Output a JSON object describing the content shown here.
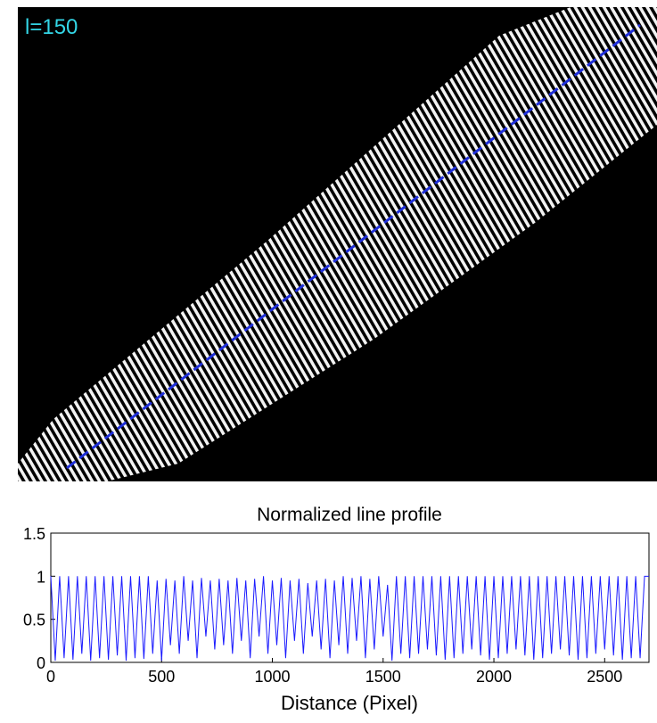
{
  "image": {
    "label": "l=150"
  },
  "chart_data": {
    "type": "line",
    "title": "Normalized line profile",
    "x_label": "Distance (Pixel)",
    "xlim": [
      0,
      2700
    ],
    "xticks": [
      0,
      500,
      1000,
      1500,
      2000,
      2500
    ],
    "ylim": [
      0,
      1.5
    ],
    "yticks": [
      0,
      0.5,
      1,
      1.5
    ],
    "x": [
      0,
      20,
      40,
      60,
      80,
      100,
      120,
      140,
      160,
      180,
      200,
      220,
      240,
      260,
      280,
      300,
      320,
      340,
      360,
      380,
      400,
      420,
      440,
      460,
      480,
      500,
      520,
      540,
      560,
      580,
      600,
      620,
      640,
      660,
      680,
      700,
      720,
      740,
      760,
      780,
      800,
      820,
      840,
      860,
      880,
      900,
      920,
      940,
      960,
      980,
      1000,
      1020,
      1040,
      1060,
      1080,
      1100,
      1120,
      1140,
      1160,
      1180,
      1200,
      1220,
      1240,
      1260,
      1280,
      1300,
      1320,
      1340,
      1360,
      1380,
      1400,
      1420,
      1440,
      1460,
      1480,
      1500,
      1520,
      1540,
      1560,
      1580,
      1600,
      1620,
      1640,
      1660,
      1680,
      1700,
      1720,
      1740,
      1760,
      1780,
      1800,
      1820,
      1840,
      1860,
      1880,
      1900,
      1920,
      1940,
      1960,
      1980,
      2000,
      2020,
      2040,
      2060,
      2080,
      2100,
      2120,
      2140,
      2160,
      2180,
      2200,
      2220,
      2240,
      2260,
      2280,
      2300,
      2320,
      2340,
      2360,
      2380,
      2400,
      2420,
      2440,
      2460,
      2480,
      2500,
      2520,
      2540,
      2560,
      2580,
      2600,
      2620,
      2640,
      2660,
      2680,
      2700
    ],
    "series": [
      {
        "color": "#1a1aff",
        "values": [
          1,
          0.02,
          1,
          0.05,
          1,
          0.03,
          1,
          0.1,
          1,
          0.02,
          1,
          0.05,
          1,
          0.03,
          1,
          0.08,
          1,
          0.02,
          1,
          0.05,
          1,
          0.04,
          1,
          0.1,
          0.95,
          0.02,
          0.97,
          0.2,
          0.95,
          0.1,
          1,
          0.25,
          0.95,
          0.05,
          0.98,
          0.3,
          0.95,
          0.15,
          0.97,
          0.2,
          0.95,
          0.1,
          0.98,
          0.25,
          0.95,
          0.05,
          0.97,
          0.3,
          1,
          0.1,
          0.95,
          0.2,
          0.98,
          0.05,
          0.95,
          0.25,
          0.97,
          0.1,
          0.92,
          0.3,
          0.95,
          0.15,
          0.97,
          0.05,
          0.95,
          0.2,
          1,
          0.1,
          0.98,
          0.25,
          1,
          0.05,
          0.97,
          0.15,
          1,
          0.3,
          0.9,
          0.02,
          1,
          0.1,
          1,
          0.05,
          1,
          0.1,
          1,
          0.15,
          1,
          0.08,
          1,
          0.03,
          1,
          0.05,
          1,
          0.1,
          1,
          0.15,
          1,
          0.08,
          1,
          0.03,
          1,
          0.05,
          1,
          0.1,
          1,
          0.15,
          1,
          0.08,
          1,
          0.03,
          1,
          0.05,
          1,
          0.1,
          1,
          0.15,
          1,
          0.08,
          1,
          0.03,
          1,
          0.05,
          1,
          0.1,
          1,
          0.15,
          1,
          0.08,
          1,
          0.03,
          1,
          0.05,
          1,
          0.05,
          1,
          1
        ]
      }
    ]
  }
}
